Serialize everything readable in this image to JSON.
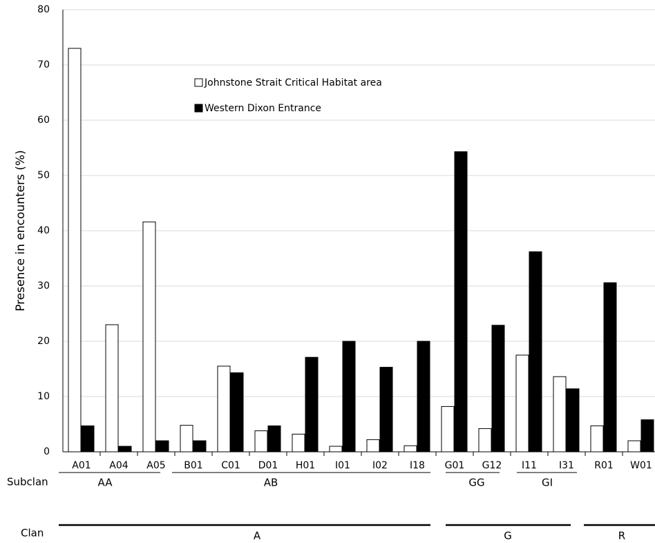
{
  "chart_data": {
    "type": "bar",
    "y_label": "Presence in encounters (%)",
    "categories": [
      "A01",
      "A04",
      "A05",
      "B01",
      "C01",
      "D01",
      "H01",
      "I01",
      "I02",
      "I18",
      "G01",
      "G12",
      "I11",
      "I31",
      "R01",
      "W01"
    ],
    "series": [
      {
        "name": "Johnstone Strait Critical Habitat area",
        "color": "#ffffff",
        "values": [
          73,
          23,
          41.6,
          4.8,
          15.5,
          3.8,
          3.2,
          1,
          2.2,
          1.1,
          8.2,
          4.2,
          17.5,
          13.6,
          4.7,
          2
        ]
      },
      {
        "name": "Western Dixon Entrance",
        "color": "#000000",
        "values": [
          4.7,
          1,
          2,
          2,
          14.3,
          4.7,
          17.1,
          20,
          15.3,
          20,
          54.3,
          22.9,
          36.2,
          11.4,
          30.6,
          5.8
        ]
      }
    ],
    "ylim": [
      0,
      80
    ],
    "yticks": [
      0,
      10,
      20,
      30,
      40,
      50,
      60,
      70,
      80
    ],
    "grid": true,
    "subclan_title": "Subclan",
    "subclans": [
      "AA",
      "AB",
      "GG",
      "GI"
    ],
    "clan_title": "Clan",
    "clans": [
      "A",
      "G",
      "R"
    ]
  }
}
